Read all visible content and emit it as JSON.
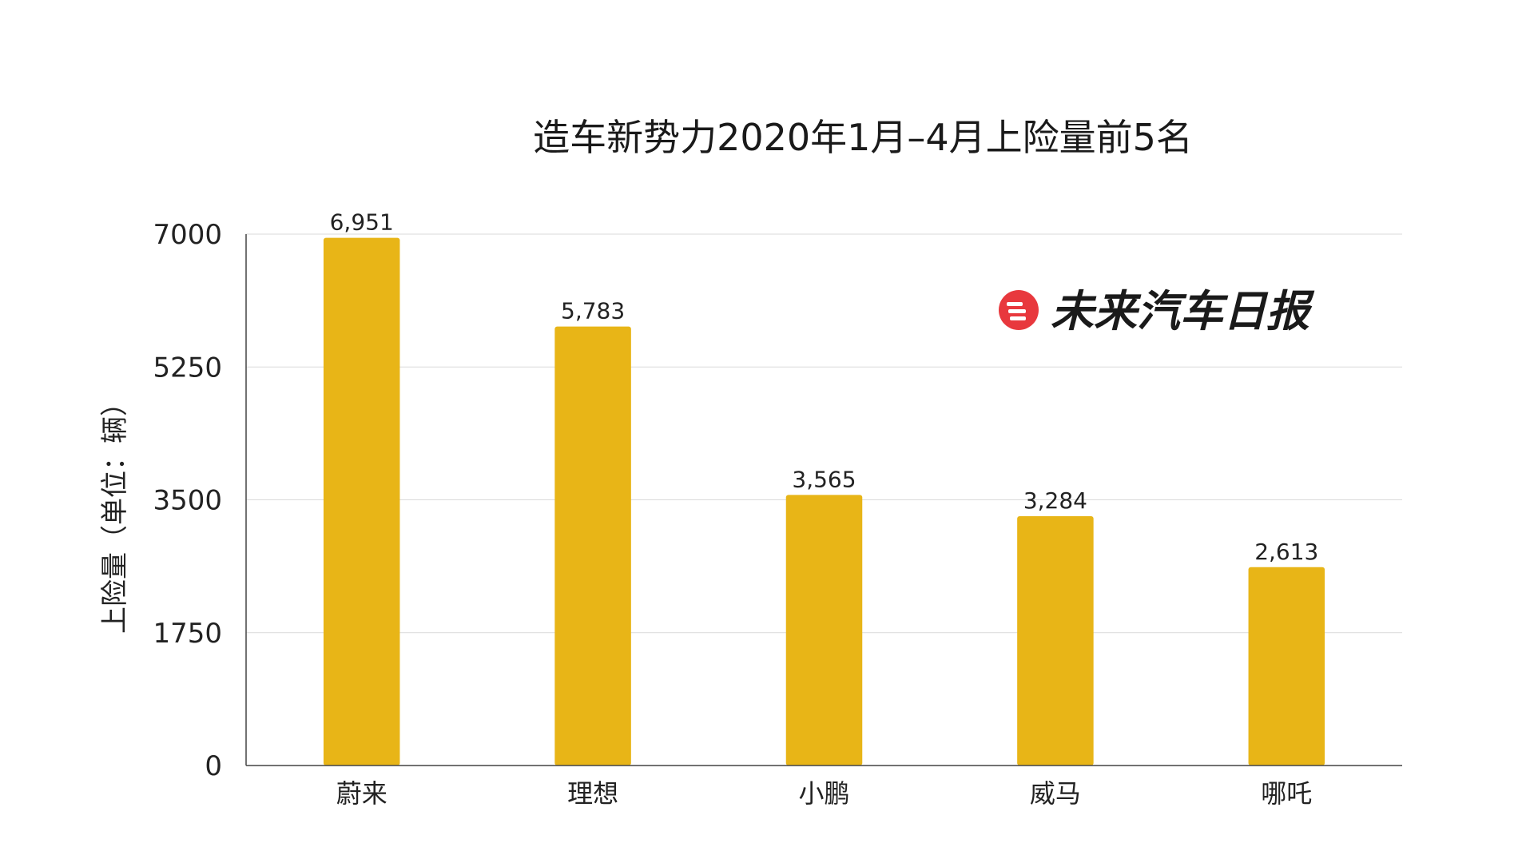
{
  "chart_data": {
    "type": "bar",
    "title": "造车新势力2020年1月–4月上险量前5名",
    "xlabel": "",
    "ylabel": "上险量（单位：辆）",
    "categories": [
      "蔚来",
      "理想",
      "小鹏",
      "威马",
      "哪吒"
    ],
    "values": [
      6951,
      5783,
      3565,
      3284,
      2613
    ],
    "data_labels": [
      "6,951",
      "5,783",
      "3,565",
      "3,284",
      "2,613"
    ],
    "ylim": [
      0,
      7000
    ],
    "yticks": [
      0,
      1750,
      3500,
      5250,
      7000
    ],
    "ytick_labels": [
      "0",
      "1750",
      "3500",
      "5250",
      "7000"
    ],
    "grid": true,
    "bar_color": "#E8B517"
  },
  "watermark": {
    "text": "未来汽车日报",
    "logo_color": "#E8383D"
  }
}
